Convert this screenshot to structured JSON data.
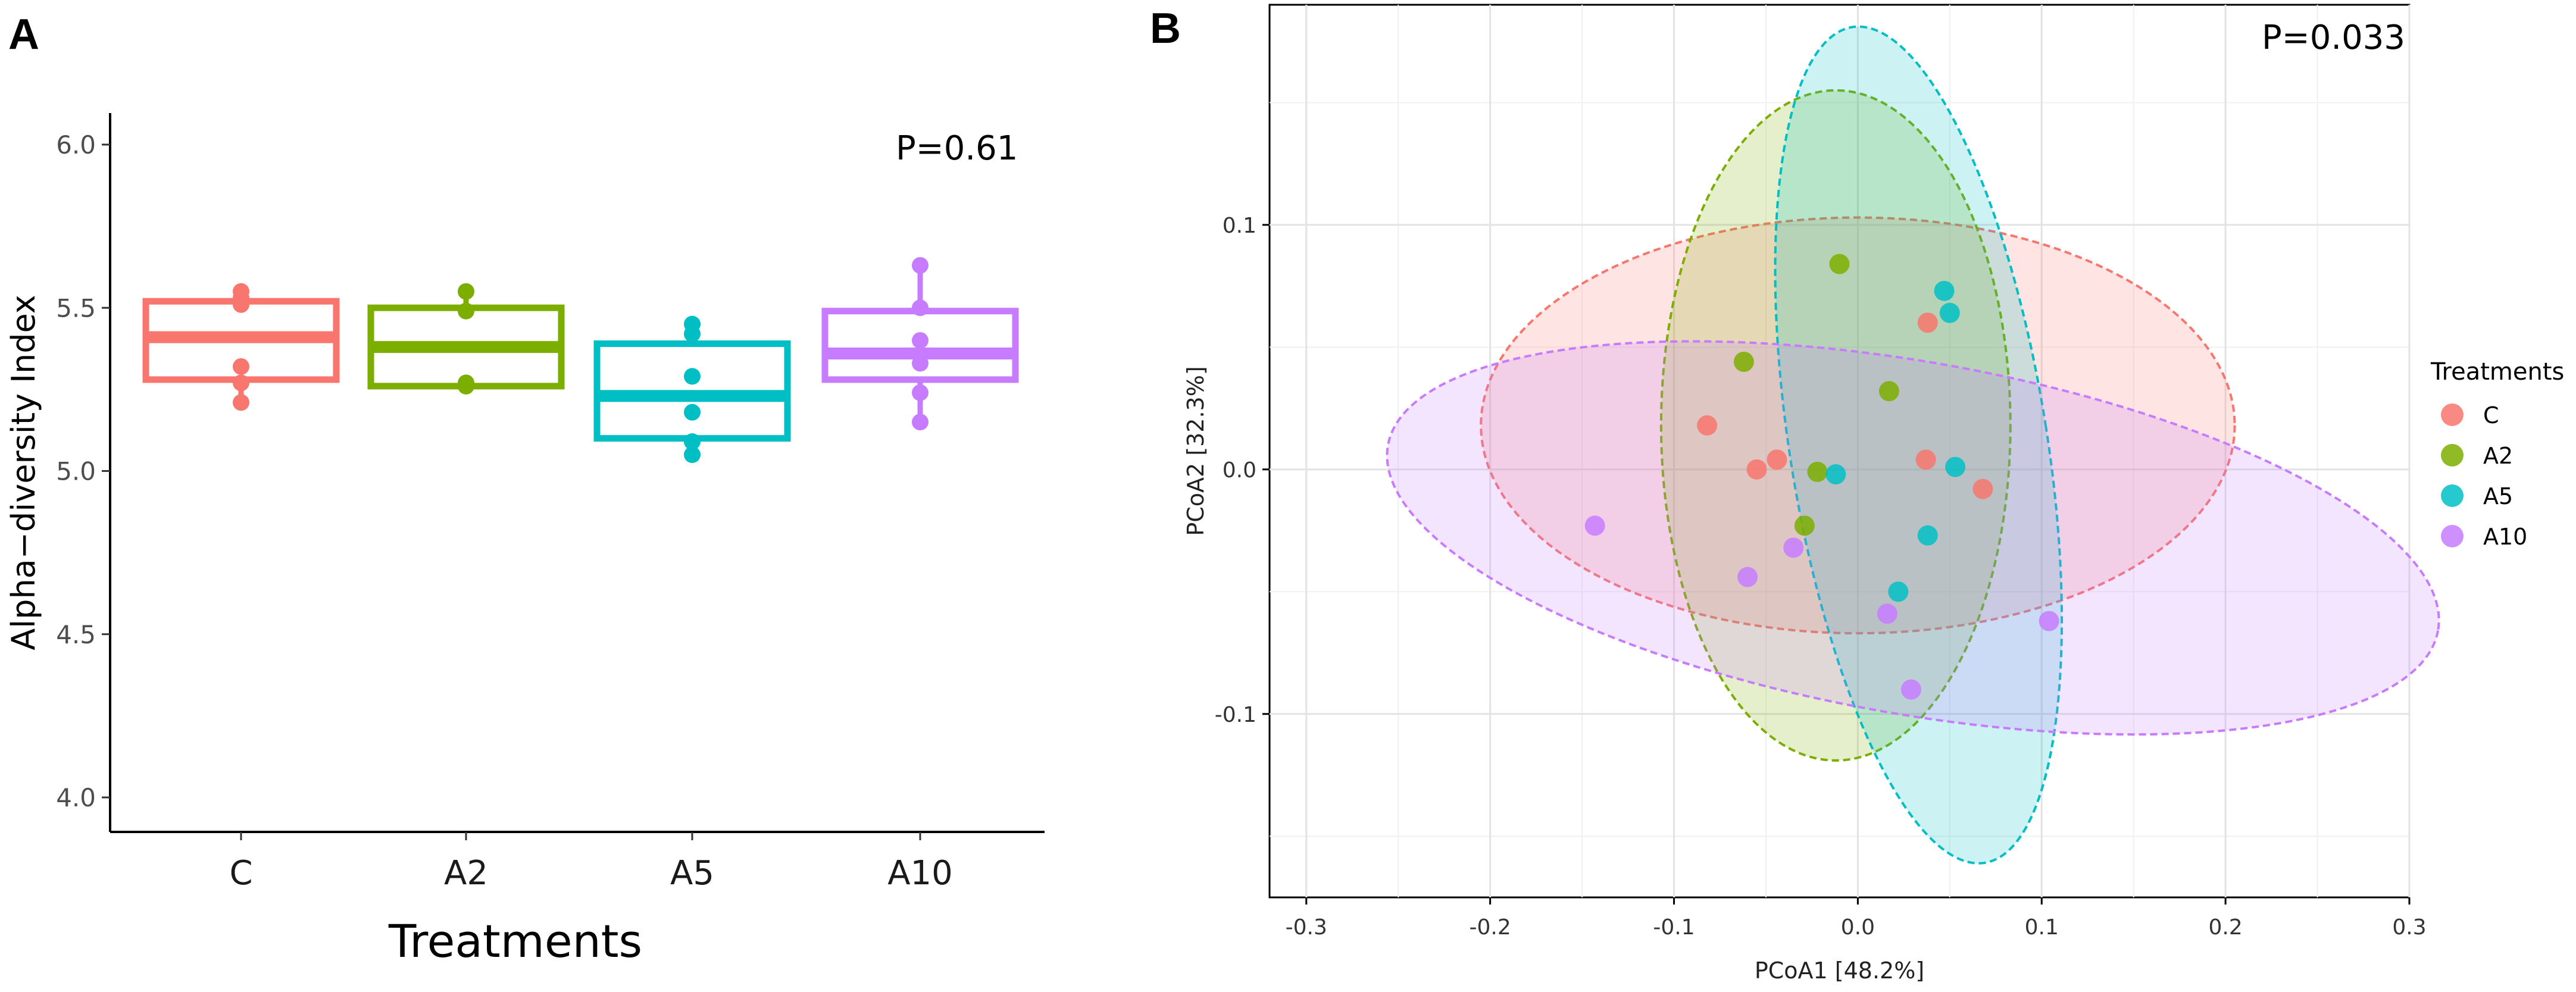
{
  "panels": {
    "a_letter": "A",
    "b_letter": "B"
  },
  "colors": {
    "C": "#F8766D",
    "A2": "#7CAE00",
    "A5": "#00BFC4",
    "A10": "#C77CFF"
  },
  "chart_data": [
    {
      "type": "box",
      "panel": "A",
      "title": "",
      "p_value_label": "P=0.61",
      "xlabel": "Treatments",
      "ylabel": "Alpha−diversity Index",
      "ylim": [
        4.0,
        6.0
      ],
      "yticks": [
        "4.0",
        "4.5",
        "5.0",
        "5.5",
        "6.0"
      ],
      "categories": [
        "C",
        "A2",
        "A5",
        "A10"
      ],
      "boxes": [
        {
          "name": "C",
          "q1": 5.28,
          "median": 5.41,
          "q3": 5.52,
          "whisker_low": 5.21,
          "whisker_high": 5.55,
          "points": [
            5.55,
            5.53,
            5.51,
            5.32,
            5.27,
            5.21
          ]
        },
        {
          "name": "A2",
          "q1": 5.26,
          "median": 5.38,
          "q3": 5.5,
          "whisker_low": 5.26,
          "whisker_high": 5.55,
          "points": [
            5.55,
            5.49,
            5.27,
            5.26
          ]
        },
        {
          "name": "A5",
          "q1": 5.1,
          "median": 5.23,
          "q3": 5.39,
          "whisker_low": 5.05,
          "whisker_high": 5.45,
          "points": [
            5.45,
            5.42,
            5.29,
            5.18,
            5.09,
            5.05
          ]
        },
        {
          "name": "A10",
          "q1": 5.28,
          "median": 5.36,
          "q3": 5.49,
          "whisker_low": 5.15,
          "whisker_high": 5.63,
          "points": [
            5.63,
            5.5,
            5.4,
            5.33,
            5.24,
            5.15
          ]
        }
      ]
    },
    {
      "type": "scatter",
      "panel": "B",
      "title": "",
      "p_value_label": "P=0.033",
      "xlabel": "PCoA1 [48.2%]",
      "ylabel": "PCoA2 [32.3%]",
      "xlim": [
        -0.32,
        0.3
      ],
      "ylim": [
        -0.175,
        0.19
      ],
      "xticks": [
        -0.3,
        -0.2,
        -0.1,
        0.0,
        0.1,
        0.2,
        0.3
      ],
      "xtick_labels": [
        "-0.3",
        "-0.2",
        "-0.1",
        "0.0",
        "0.1",
        "0.2",
        "0.3"
      ],
      "yticks": [
        -0.1,
        0.0,
        0.1
      ],
      "ytick_labels": [
        "-0.1",
        "0.0",
        "0.1"
      ],
      "legend_title": "Treatments",
      "legend_position": "right",
      "series": [
        {
          "name": "C",
          "points": [
            [
              -0.082,
              0.018
            ],
            [
              -0.044,
              0.004
            ],
            [
              -0.055,
              0.0
            ],
            [
              0.038,
              0.06
            ],
            [
              0.037,
              0.004
            ],
            [
              0.068,
              -0.008
            ]
          ]
        },
        {
          "name": "A2",
          "points": [
            [
              -0.062,
              0.044
            ],
            [
              -0.01,
              0.084
            ],
            [
              0.017,
              0.032
            ],
            [
              -0.022,
              -0.001
            ],
            [
              -0.029,
              -0.023
            ]
          ]
        },
        {
          "name": "A5",
          "points": [
            [
              0.047,
              0.073
            ],
            [
              0.05,
              0.064
            ],
            [
              0.053,
              0.001
            ],
            [
              -0.012,
              -0.002
            ],
            [
              0.038,
              -0.027
            ],
            [
              0.022,
              -0.05
            ]
          ]
        },
        {
          "name": "A10",
          "points": [
            [
              -0.143,
              -0.023
            ],
            [
              -0.06,
              -0.044
            ],
            [
              -0.035,
              -0.032
            ],
            [
              0.016,
              -0.059
            ],
            [
              0.104,
              -0.062
            ],
            [
              0.029,
              -0.09
            ]
          ]
        }
      ],
      "ellipses": [
        {
          "name": "C",
          "cx": 0.0,
          "cy": 0.018,
          "rx": 0.205,
          "ry": 0.085,
          "angle": 0
        },
        {
          "name": "A2",
          "cx": -0.012,
          "cy": 0.018,
          "rx": 0.095,
          "ry": 0.137,
          "angle": 0
        },
        {
          "name": "A5",
          "cx": 0.033,
          "cy": 0.01,
          "rx": 0.07,
          "ry": 0.173,
          "angle": -9
        },
        {
          "name": "A10",
          "cx": 0.03,
          "cy": -0.028,
          "rx": 0.29,
          "ry": 0.072,
          "angle": 10
        }
      ]
    }
  ]
}
